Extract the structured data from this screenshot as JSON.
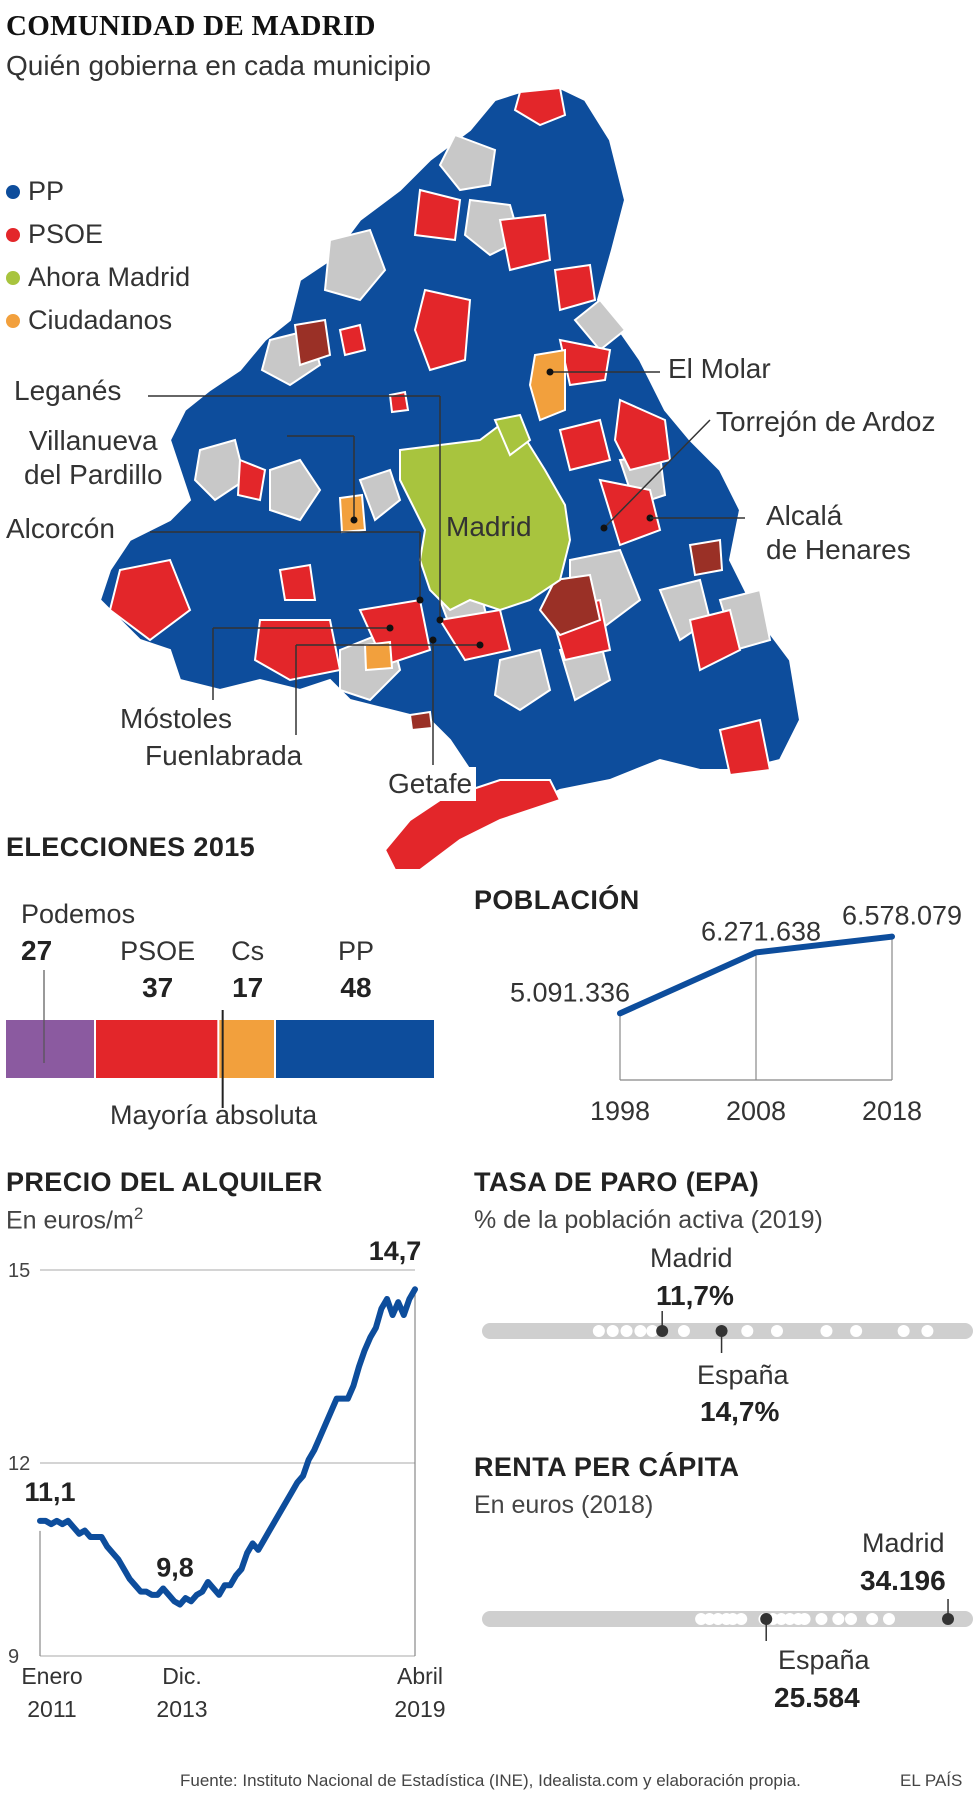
{
  "header": {
    "title": "COMUNIDAD DE MADRID",
    "subtitle": "Quién gobierna en cada municipio"
  },
  "map": {
    "legend": [
      {
        "label": "PP",
        "color": "#0d4d9c"
      },
      {
        "label": "PSOE",
        "color": "#e3262a"
      },
      {
        "label": "Ahora Madrid",
        "color": "#a8c43e"
      },
      {
        "label": "Ciudadanos",
        "color": "#f2a03d"
      }
    ],
    "labels": {
      "el_molar": "El Molar",
      "torrejon": "Torrejón de Ardoz",
      "leganes": "Leganés",
      "villanueva_1": "Villanueva",
      "villanueva_2": "del Pardillo",
      "alcorcon": "Alcorcón",
      "madrid": "Madrid",
      "alcala_1": "Alcalá",
      "alcala_2": "de Henares",
      "mostoles": "Móstoles",
      "fuenlabrada": "Fuenlabrada",
      "getafe": "Getafe"
    },
    "colors": {
      "pp": "#0d4d9c",
      "psoe": "#e3262a",
      "madrid": "#a8c43e",
      "cs": "#f2a03d",
      "other": "#c8c8c8",
      "darkred": "#9a3026"
    }
  },
  "chart_data": [
    {
      "type": "bar",
      "title": "ELECCIONES 2015",
      "orientation": "stacked-horizontal",
      "categories": [
        "Podemos",
        "PSOE",
        "Cs",
        "PP"
      ],
      "values": [
        27,
        37,
        17,
        48
      ],
      "colors": [
        "#8b5aa0",
        "#e3262a",
        "#f2a03d",
        "#0d4d9c"
      ],
      "annotation": "Mayoría absoluta",
      "total": 129,
      "majority": 65
    },
    {
      "type": "line",
      "title": "POBLACIÓN",
      "x": [
        1998,
        2008,
        2018
      ],
      "y": [
        5091336,
        6271638,
        6578079
      ],
      "value_labels": [
        "5.091.336",
        "6.271.638",
        "6.578.079"
      ],
      "ylim": [
        3800000,
        6900000
      ],
      "color": "#0d4d9c"
    },
    {
      "type": "line",
      "title": "PRECIO DEL ALQUILER",
      "subtitle": "En euros/m",
      "subtitle_sup": "2",
      "yticks": [
        "15",
        "12",
        "9"
      ],
      "ylim": [
        9,
        15
      ],
      "x_labels": [
        [
          "Enero",
          "2011"
        ],
        [
          "Dic.",
          "2013"
        ],
        [
          "Abril",
          "2019"
        ]
      ],
      "annotations": {
        "start": "11,1",
        "min": "9,8",
        "end": "14,7"
      },
      "y": [
        11.1,
        11.1,
        11.05,
        11.1,
        11.05,
        11.1,
        11.0,
        10.9,
        10.95,
        10.85,
        10.85,
        10.85,
        10.7,
        10.6,
        10.5,
        10.35,
        10.2,
        10.1,
        10.0,
        10.0,
        9.95,
        9.95,
        10.05,
        9.95,
        9.85,
        9.8,
        9.9,
        9.85,
        9.95,
        10.0,
        10.15,
        10.05,
        9.95,
        10.1,
        10.1,
        10.25,
        10.35,
        10.6,
        10.75,
        10.65,
        10.8,
        10.95,
        11.1,
        11.25,
        11.4,
        11.55,
        11.7,
        11.8,
        12.05,
        12.2,
        12.4,
        12.6,
        12.8,
        13.0,
        13.0,
        13.0,
        13.2,
        13.5,
        13.75,
        13.95,
        14.1,
        14.4,
        14.55,
        14.3,
        14.5,
        14.3,
        14.55,
        14.7
      ]
    },
    {
      "type": "scatter",
      "title": "TASA DE PARO (EPA)",
      "subtitle": "% de la población activa (2019)",
      "points": [
        8.5,
        9.2,
        9.9,
        10.6,
        11.2,
        11.7,
        12.8,
        14.7,
        16.0,
        17.5,
        20.0,
        21.5,
        23.9,
        25.1
      ],
      "highlight": [
        {
          "name": "Madrid",
          "value": 11.7,
          "label": "11,7%"
        },
        {
          "name": "España",
          "value": 14.7,
          "label": "14,7%"
        }
      ],
      "xlim": [
        3,
        27
      ]
    },
    {
      "type": "scatter",
      "title": "RENTA PER CÁPITA",
      "subtitle": "En euros (2018)",
      "points": [
        22500,
        22900,
        23300,
        23700,
        24000,
        24400,
        25500,
        25900,
        26300,
        26700,
        27100,
        27400,
        28200,
        29000,
        29600,
        30600,
        31400,
        34196
      ],
      "highlight": [
        {
          "name": "España",
          "value": 25584,
          "label": "25.584"
        },
        {
          "name": "Madrid",
          "value": 34196,
          "label": "34.196"
        }
      ],
      "xlim": [
        12500,
        35000
      ]
    }
  ],
  "labels": {
    "elecciones": {
      "title": "ELECCIONES 2015",
      "majority": "Mayoría absoluta"
    },
    "poblacion": {
      "title": "POBLACIÓN"
    },
    "alquiler": {
      "title": "PRECIO DEL ALQUILER",
      "subtitle": "En euros/m",
      "sup": "2"
    },
    "paro": {
      "title": "TASA DE PARO (EPA)",
      "subtitle": "% de la población activa (2019)",
      "madrid": "Madrid",
      "madrid_val": "11,7%",
      "espana": "España",
      "espana_val": "14,7%"
    },
    "renta": {
      "title": "RENTA PER CÁPITA",
      "subtitle": "En euros (2018)",
      "madrid": "Madrid",
      "madrid_val": "34.196",
      "espana": "España",
      "espana_val": "25.584"
    }
  },
  "footer": {
    "source": "Fuente: Instituto Nacional de Estadística (INE), Idealista.com y elaboración propia.",
    "brand": "EL PAÍS"
  }
}
